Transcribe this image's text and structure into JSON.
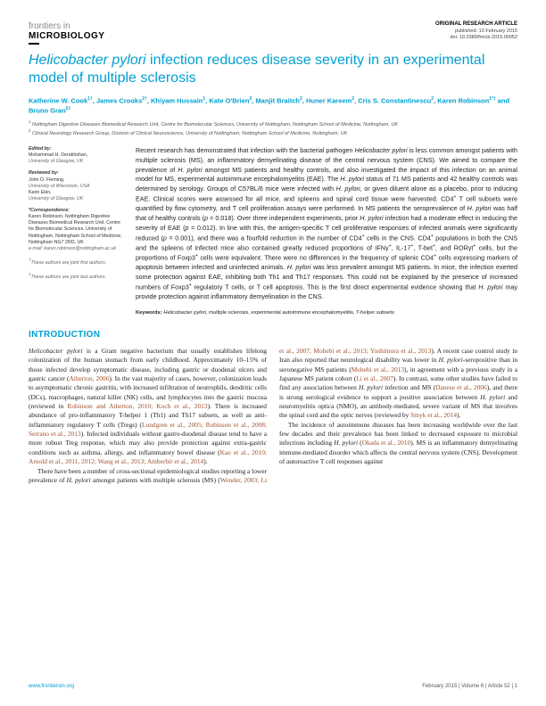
{
  "journal": {
    "line1": "frontiers in",
    "line2": "MICROBIOLOGY"
  },
  "pubmeta": {
    "type": "ORIGINAL RESEARCH ARTICLE",
    "date": "published: 13 February 2015",
    "doi": "doi: 10.3389/fmicb.2015.00052"
  },
  "title_italic": "Helicobacter pylori",
  "title_rest": " infection reduces disease severity in an experimental model of multiple sclerosis",
  "authors_html": "Katherine W. Cook<sup>1†</sup>, James Crooks<sup>2†</sup>, Khiyam Hussain<sup>1</sup>, Kate O'Brien<sup>2</sup>, Manjit Braitch<sup>2</sup>, Huner Kareem<sup>2</sup>, Cris S. Constantinescu<sup>2</sup>, Karen Robinson<sup>1*‡</sup> and Bruno Gran<sup>2‡</sup>",
  "affiliations": [
    "<sup>1</sup> Nottingham Digestive Diseases Biomedical Research Unit, Centre for Biomolecular Sciences, University of Nottingham, Nottingham School of Medicine, Nottingham, UK",
    "<sup>2</sup> Clinical Neurology Research Group, Division of Clinical Neuroscience, University of Nottingham, Nottingham School of Medicine, Nottingham, UK"
  ],
  "side": {
    "edited_label": "Edited by:",
    "edited_name": "Mohammad H. Derakhshan,",
    "edited_inst": "University of Glasgow, UK",
    "reviewed_label": "Reviewed by:",
    "reviewed": [
      {
        "name": "John O. Fleming,",
        "inst": "University of Wisconsin, USA"
      },
      {
        "name": "Karin Ekin,",
        "inst": "University of Glasgow, UK"
      }
    ],
    "corr_label": "*Correspondence:",
    "corr_text": "Karen Robinson, Nottingham Digestive Diseases Biomedical Research Unit, Centre for Biomolecular Sciences, University of Nottingham, Nottingham School of Medicine, Nottingham NG7 2RD, UK",
    "corr_email": "e-mail: karen.robinson@nottingham.ac.uk",
    "note1": "<sup>†</sup>These authors are joint first authors.",
    "note2": "<sup>‡</sup>These authors are joint last authors."
  },
  "abstract": "Recent research has demonstrated that infection with the bacterial pathogen <i>Helicobacter pylori</i> is less common amongst patients with multiple sclerosis (MS), an inflammatory demyelinating disease of the central nervous system (CNS). We aimed to compare the prevalence of <i>H. pylori</i> amongst MS patients and healthy controls, and also investigated the impact of this infection on an animal model for MS, experimental autoimmune encephalomyelitis (EAE). The <i>H. pylori</i> status of 71 MS patients and 42 healthy controls was determined by serology. Groups of C57BL/6 mice were infected with <i>H. pylori</i>, or given diluent alone as a placebo, prior to inducing EAE. Clinical scores were assessed for all mice, and spleens and spinal cord tissue were harvested. CD4<sup>+</sup> T cell subsets were quantified by flow cytometry, and T cell proliferation assays were performed. In MS patients the seroprevalence of <i>H. pylori</i> was half that of healthy controls (<i>p</i> = 0.018). Over three independent experiments, prior <i>H. pylori</i> infection had a moderate effect in reducing the severity of EAE (<i>p</i> = 0.012). In line with this, the antigen-specific T cell proliferative responses of infected animals were significantly reduced (<i>p</i> = 0.001), and there was a fourfold reduction in the number of CD4<sup>+</sup> cells in the CNS. CD4<sup>+</sup> populations in both the CNS and the spleens of infected mice also contained greatly reduced proportions of IFNγ<sup>+</sup>, IL-17<sup>+</sup>, T-bet<sup>+</sup>, and RORγt<sup>+</sup> cells, but the proportions of Foxp3<sup>+</sup> cells were equivalent. There were no differences in the frequency of splenic CD4<sup>+</sup> cells expressing markers of apoptosis between infected and uninfected animals. <i>H. pylori</i> was less prevalent amongst MS patients. In mice, the infection exerted some protection against EAE, inhibiting both Th1 and Th17 responses. This could not be explained by the presence of increased numbers of Foxp3<sup>+</sup> regulatory T cells, or T cell apoptosis. This is the first direct experimental evidence showing that <i>H. pylori</i> may provide protection against inflammatory demyelination in the CNS.",
  "keywords_label": "Keywords:",
  "keywords": " <i>Helicobacter pylori</i>, multiple sclerosis, experimental autoimmune encephalomyelitis, T-helper subsets",
  "intro_heading": "INTRODUCTION",
  "body_p1": "<i>Helicobacter pylori</i> is a Gram negative bacterium that usually establishes lifelong colonization of the human stomach from early childhood. Approximately 10–15% of those infected develop symptomatic disease, including gastric or duodenal ulcers and gastric cancer (<span class=\"ref\">Atherton, 2006</span>). In the vast majority of cases, however, colonization leads to asymptomatic chronic gastritis, with increased infiltration of neutrophils, dendritic cells (DCs), macrophages, natural killer (NK) cells, and lymphocytes into the gastric mucosa (reviewed in <span class=\"ref\">Robinson and Atherton, 2010; Koch et al., 2013</span>). There is increased abundance of pro-inflammatory T-helper 1 (Th1) and Th17 subsets, as well as anti-inflammatory regulatory T cells (Tregs) (<span class=\"ref\">Lundgren et al., 2005; Robinson et al., 2008; Serrano et al., 2013</span>). Infected individuals without gastro-duodenal disease tend to have a more robust Treg response, which may also provide protection against extra-gastric conditions such as asthma, allergy, and inflammatory bowel disease (<span class=\"ref\">Kao et al., 2010; Arnold et al., 2011, 2012; Wang et al., 2013; Amberbir et al., 2014</span>).",
  "body_p2": "There have been a number of cross-sectional epidemiological studies reporting a lower prevalence of <i>H. pylori</i> amongst patients with multiple sclerosis (MS) (<span class=\"ref\">Wender, 2003; Li et al., 2007; Mohebi et al., 2013; Yoshimura et al., 2013</span>). A recent case control study in Iran also reported that neurological disability was lower in <i>H. pylori</i>-seropositive than in seronegative MS patients (<span class=\"ref\">Mohebi et al., 2013</span>), in agreement with a previous study in a Japanese MS patient cohort (<span class=\"ref\">Li et al., 2007</span>). In contrast, some other studies have failed to find any association between <i>H. pylori</i> infection and MS (<span class=\"ref\">Danese et al., 2006</span>), and there is strong serological evidence to support a positive association between <i>H. pylori</i> and neuromyelitis optica (NMO), an antibody-mediated, severe variant of MS that involves the spinal cord and the optic nerves (reviewed by <span class=\"ref\">Smyk et al., 2014</span>).",
  "body_p3": "The incidence of autoimmune diseases has been increasing worldwide over the last few decades and their prevalence has been linked to decreased exposure to microbial infections including <i>H. pylori</i> (<span class=\"ref\">Okada et al., 2010</span>). MS is an inflammatory demyelinating immune-mediated disorder which affects the central nervous system (CNS). Development of autoreactive T cell responses against",
  "footer": {
    "left": "www.frontiersin.org",
    "right": "February 2015 | Volume 6 | Article 52 | 1"
  },
  "colors": {
    "accent": "#00a0d2",
    "ref": "#a0522d",
    "text": "#222222",
    "muted": "#555555",
    "bg": "#ffffff"
  }
}
